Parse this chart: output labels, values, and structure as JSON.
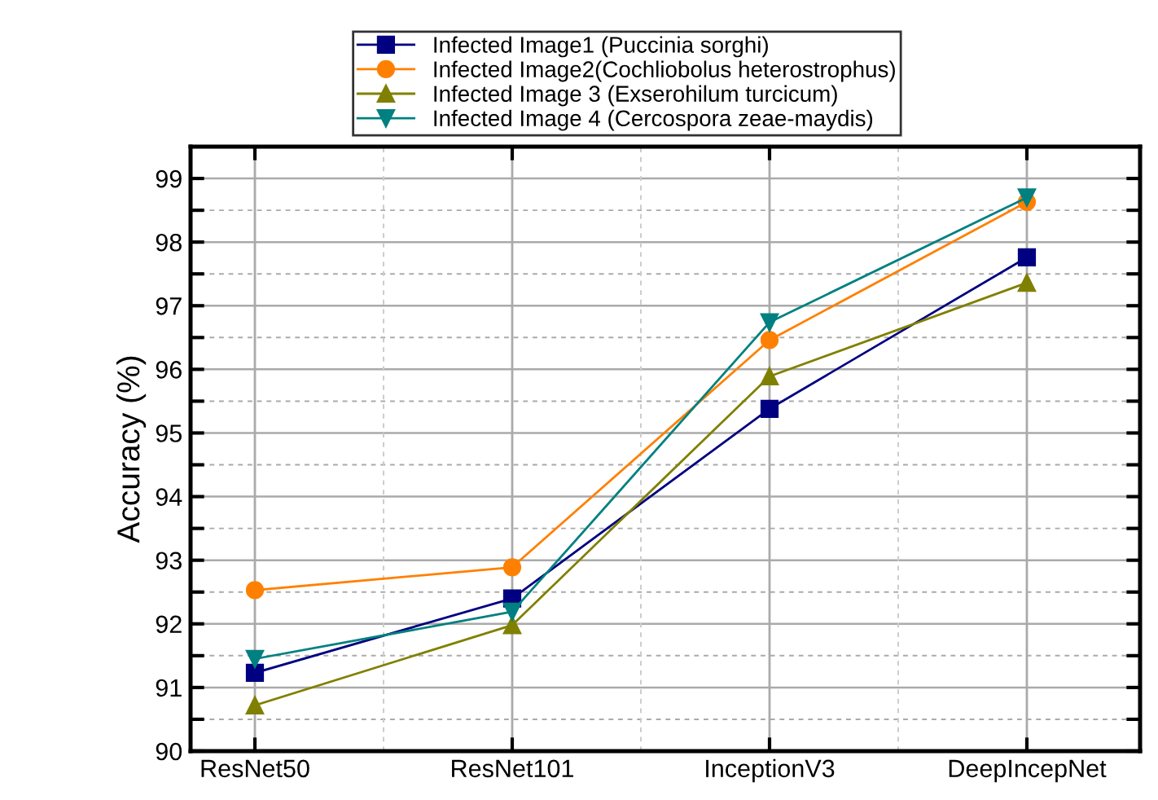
{
  "chart_data": {
    "type": "line",
    "ylabel": "Accuracy (%)",
    "categories": [
      "ResNet50",
      "ResNet101",
      "InceptionV3",
      "DeepIncepNet"
    ],
    "series": [
      {
        "name": "Infected Image1 (Puccinia sorghi)",
        "color": "#000080",
        "marker": "square",
        "values": [
          91.23,
          92.4,
          95.38,
          97.76
        ]
      },
      {
        "name": "Infected Image2(Cochliobolus heterostrophus)",
        "color": "#ff8000",
        "marker": "circle",
        "values": [
          92.53,
          92.89,
          96.46,
          98.63
        ]
      },
      {
        "name": "Infected Image 3 (Exserohilum turcicum)",
        "color": "#808000",
        "marker": "triangle",
        "values": [
          90.72,
          91.98,
          95.89,
          97.36
        ]
      },
      {
        "name": "Infected Image 4 (Cercospora zeae-maydis)",
        "color": "#008080",
        "marker": "triangle_down",
        "values": [
          91.45,
          92.19,
          96.74,
          98.7
        ]
      }
    ],
    "ylim": [
      90,
      99.5
    ],
    "yticks": [
      90,
      {
        "value": 90.5,
        "label": null
      },
      91,
      {
        "value": 91.5,
        "label": null
      },
      92,
      {
        "value": 92.5,
        "label": null
      },
      93,
      {
        "value": 93.5,
        "label": null
      },
      94,
      {
        "value": 94.5,
        "label": null
      },
      95,
      {
        "value": 95.5,
        "label": null
      },
      96,
      {
        "value": 96.5,
        "label": null
      },
      97,
      {
        "value": 97.5,
        "label": null
      },
      98,
      {
        "value": 98.5,
        "label": null
      },
      99
    ],
    "grid": true,
    "legend": "top",
    "line_style": "solid"
  }
}
